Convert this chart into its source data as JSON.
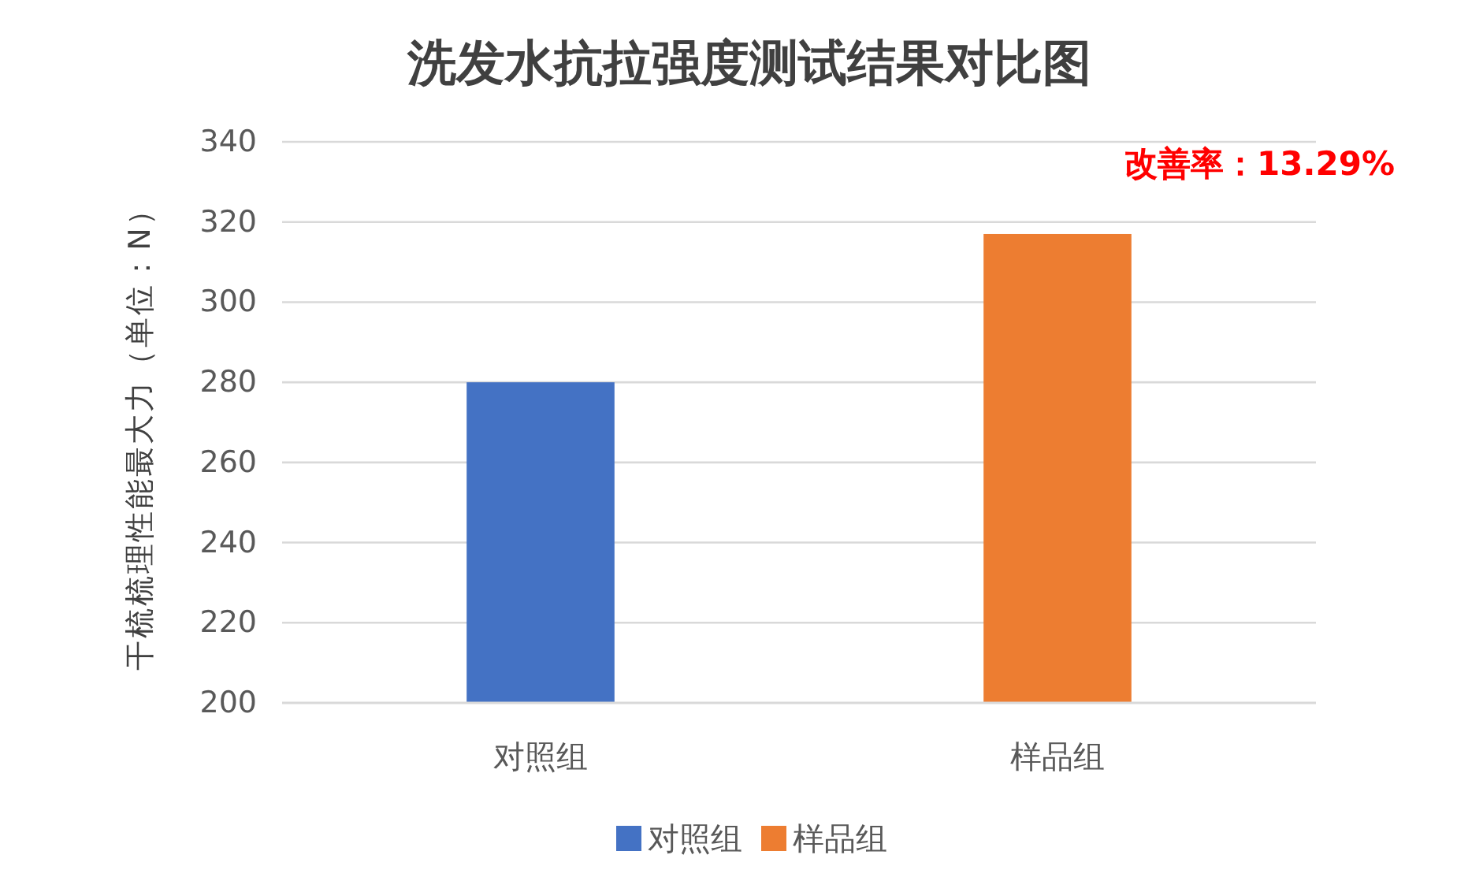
{
  "chart_data": {
    "type": "bar",
    "title": "洗发水抗拉强度测试结果对比图",
    "ylabel": "干梳梳理性能最大力（单位：N）",
    "annotations": [
      "改善率：13.29%"
    ],
    "categories": [
      "对照组",
      "样品组"
    ],
    "series": [
      {
        "name": "对照组",
        "color": "#4472c4",
        "values": [
          280,
          null
        ]
      },
      {
        "name": "样品组",
        "color": "#ed7d31",
        "values": [
          null,
          317
        ]
      }
    ],
    "ylim": [
      200,
      340
    ],
    "yticks": [
      200,
      220,
      240,
      260,
      280,
      300,
      320,
      340
    ],
    "grid": "y",
    "legend": "bottom"
  }
}
